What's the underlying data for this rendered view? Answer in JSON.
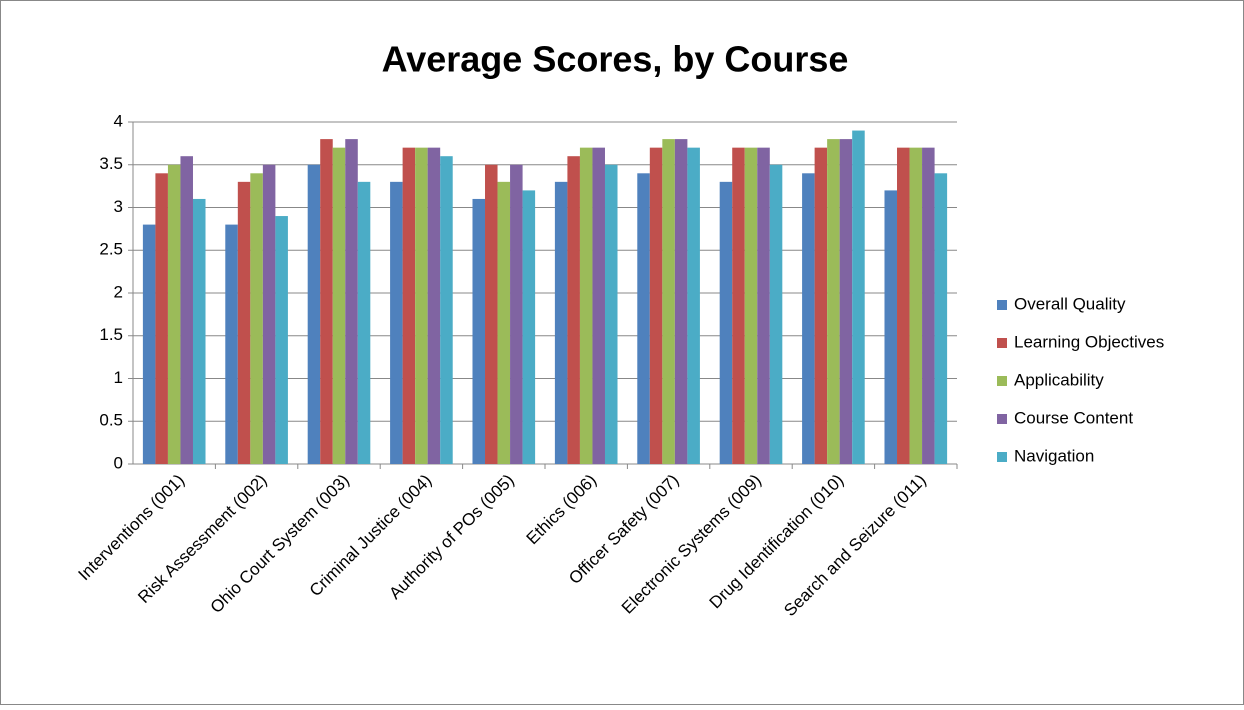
{
  "chart_data": {
    "type": "bar",
    "title": "Average Scores, by Course",
    "categories": [
      "Interventions (001)",
      "Risk Assessment (002)",
      "Ohio Court System (003)",
      "Criminal Justice (004)",
      "Authority of POs (005)",
      "Ethics (006)",
      "Officer Safety (007)",
      "Electronic Systems (009)",
      "Drug Identification (010)",
      "Search and Seizure (011)"
    ],
    "series": [
      {
        "name": "Overall Quality",
        "color": "#4F81BD",
        "values": [
          2.8,
          2.8,
          3.5,
          3.3,
          3.1,
          3.3,
          3.4,
          3.3,
          3.4,
          3.2
        ]
      },
      {
        "name": "Learning Objectives",
        "color": "#C0504D",
        "values": [
          3.4,
          3.3,
          3.8,
          3.7,
          3.5,
          3.6,
          3.7,
          3.7,
          3.7,
          3.7
        ]
      },
      {
        "name": "Applicability",
        "color": "#9BBB59",
        "values": [
          3.5,
          3.4,
          3.7,
          3.7,
          3.3,
          3.7,
          3.8,
          3.7,
          3.8,
          3.7
        ]
      },
      {
        "name": "Course Content",
        "color": "#8064A2",
        "values": [
          3.6,
          3.5,
          3.8,
          3.7,
          3.5,
          3.7,
          3.8,
          3.7,
          3.8,
          3.7
        ]
      },
      {
        "name": "Navigation",
        "color": "#4BACC6",
        "values": [
          3.1,
          2.9,
          3.3,
          3.6,
          3.2,
          3.5,
          3.7,
          3.5,
          3.9,
          3.4
        ]
      }
    ],
    "ylim": [
      0,
      4
    ],
    "yticks": [
      0,
      0.5,
      1,
      1.5,
      2,
      2.5,
      3,
      3.5,
      4
    ],
    "grid": true,
    "legend": "right"
  }
}
